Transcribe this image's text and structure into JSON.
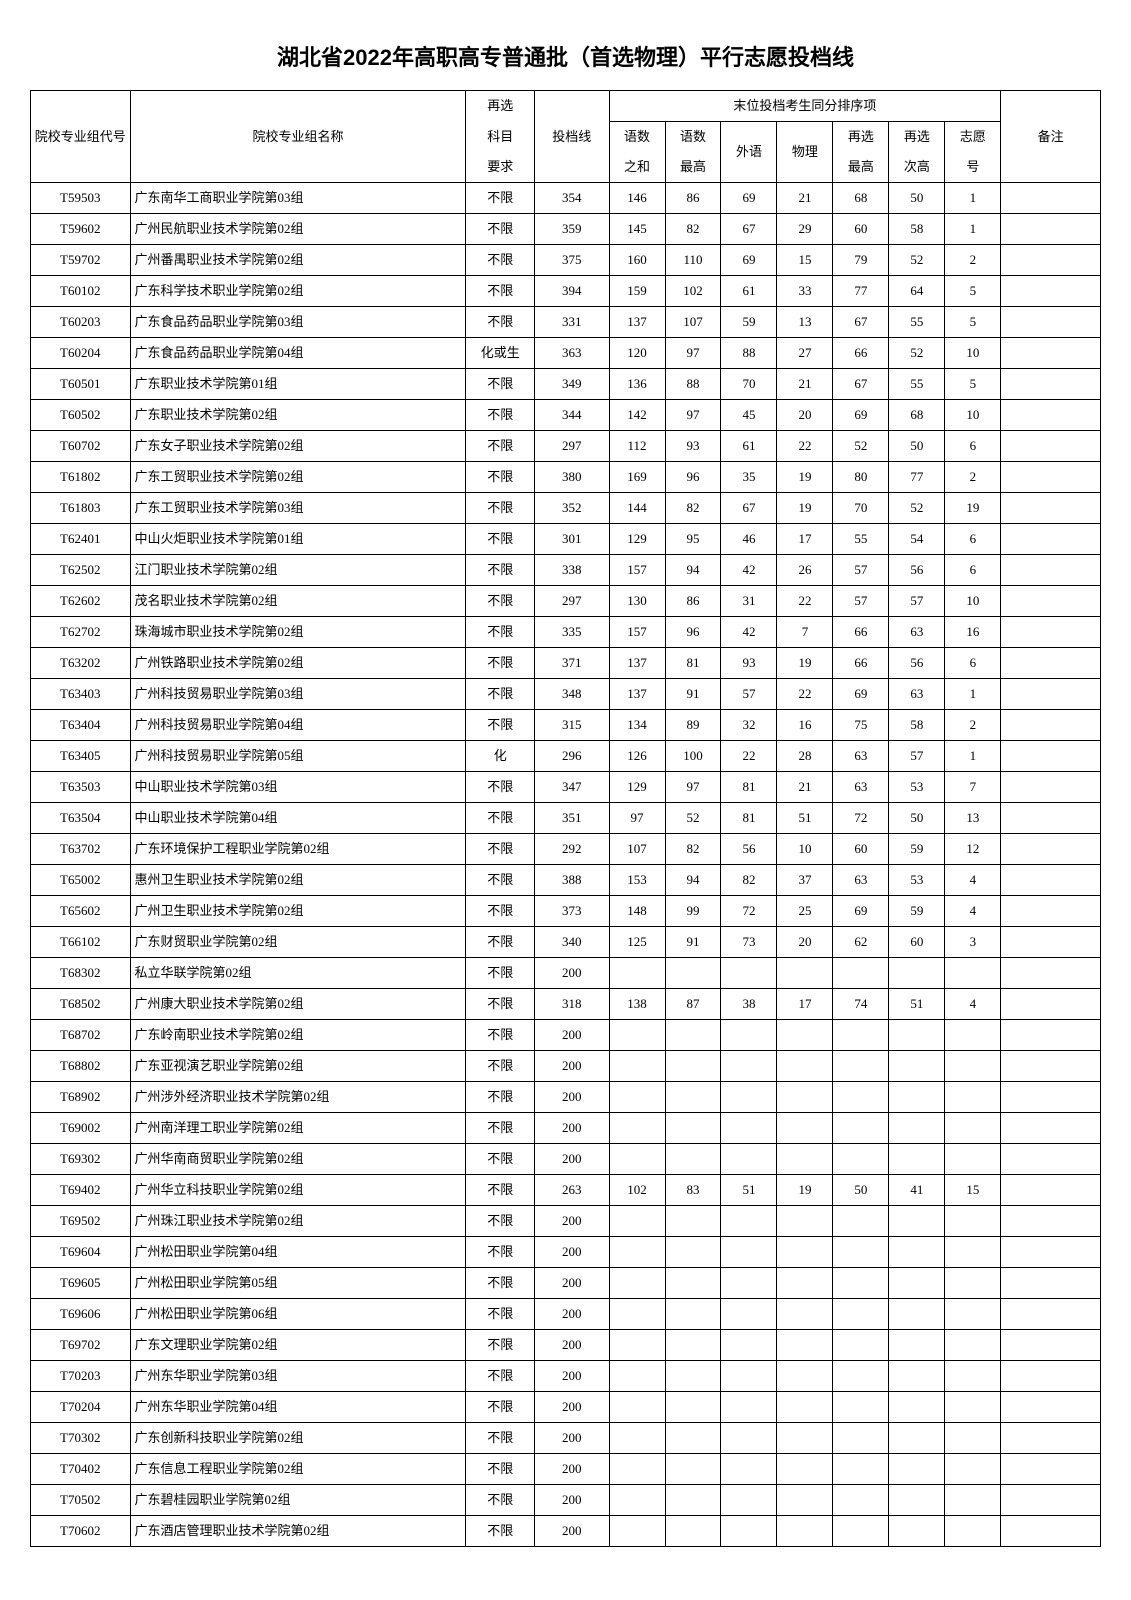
{
  "title": "湖北省2022年高职高专普通批（首选物理）平行志愿投档线",
  "headers": {
    "code": "院校专业组代号",
    "name": "院校专业组名称",
    "req_top": "再选",
    "req_mid": "科目",
    "req_bot": "要求",
    "score_line": "投档线",
    "tiebreak_group": "末位投档考生同分排序项",
    "c1a": "语数",
    "c1b": "之和",
    "c2a": "语数",
    "c2b": "最高",
    "c3": "外语",
    "c4": "物理",
    "c5a": "再选",
    "c5b": "最高",
    "c6a": "再选",
    "c6b": "次高",
    "c7a": "志愿",
    "c7b": "号",
    "note": "备注"
  },
  "rows": [
    {
      "code": "T59503",
      "name": "广东南华工商职业学院第03组",
      "req": "不限",
      "line": "354",
      "s1": "146",
      "s2": "86",
      "s3": "69",
      "s4": "21",
      "s5": "68",
      "s6": "50",
      "s7": "1",
      "note": ""
    },
    {
      "code": "T59602",
      "name": "广州民航职业技术学院第02组",
      "req": "不限",
      "line": "359",
      "s1": "145",
      "s2": "82",
      "s3": "67",
      "s4": "29",
      "s5": "60",
      "s6": "58",
      "s7": "1",
      "note": ""
    },
    {
      "code": "T59702",
      "name": "广州番禺职业技术学院第02组",
      "req": "不限",
      "line": "375",
      "s1": "160",
      "s2": "110",
      "s3": "69",
      "s4": "15",
      "s5": "79",
      "s6": "52",
      "s7": "2",
      "note": ""
    },
    {
      "code": "T60102",
      "name": "广东科学技术职业学院第02组",
      "req": "不限",
      "line": "394",
      "s1": "159",
      "s2": "102",
      "s3": "61",
      "s4": "33",
      "s5": "77",
      "s6": "64",
      "s7": "5",
      "note": ""
    },
    {
      "code": "T60203",
      "name": "广东食品药品职业学院第03组",
      "req": "不限",
      "line": "331",
      "s1": "137",
      "s2": "107",
      "s3": "59",
      "s4": "13",
      "s5": "67",
      "s6": "55",
      "s7": "5",
      "note": ""
    },
    {
      "code": "T60204",
      "name": "广东食品药品职业学院第04组",
      "req": "化或生",
      "line": "363",
      "s1": "120",
      "s2": "97",
      "s3": "88",
      "s4": "27",
      "s5": "66",
      "s6": "52",
      "s7": "10",
      "note": ""
    },
    {
      "code": "T60501",
      "name": "广东职业技术学院第01组",
      "req": "不限",
      "line": "349",
      "s1": "136",
      "s2": "88",
      "s3": "70",
      "s4": "21",
      "s5": "67",
      "s6": "55",
      "s7": "5",
      "note": ""
    },
    {
      "code": "T60502",
      "name": "广东职业技术学院第02组",
      "req": "不限",
      "line": "344",
      "s1": "142",
      "s2": "97",
      "s3": "45",
      "s4": "20",
      "s5": "69",
      "s6": "68",
      "s7": "10",
      "note": ""
    },
    {
      "code": "T60702",
      "name": "广东女子职业技术学院第02组",
      "req": "不限",
      "line": "297",
      "s1": "112",
      "s2": "93",
      "s3": "61",
      "s4": "22",
      "s5": "52",
      "s6": "50",
      "s7": "6",
      "note": ""
    },
    {
      "code": "T61802",
      "name": "广东工贸职业技术学院第02组",
      "req": "不限",
      "line": "380",
      "s1": "169",
      "s2": "96",
      "s3": "35",
      "s4": "19",
      "s5": "80",
      "s6": "77",
      "s7": "2",
      "note": ""
    },
    {
      "code": "T61803",
      "name": "广东工贸职业技术学院第03组",
      "req": "不限",
      "line": "352",
      "s1": "144",
      "s2": "82",
      "s3": "67",
      "s4": "19",
      "s5": "70",
      "s6": "52",
      "s7": "19",
      "note": ""
    },
    {
      "code": "T62401",
      "name": "中山火炬职业技术学院第01组",
      "req": "不限",
      "line": "301",
      "s1": "129",
      "s2": "95",
      "s3": "46",
      "s4": "17",
      "s5": "55",
      "s6": "54",
      "s7": "6",
      "note": ""
    },
    {
      "code": "T62502",
      "name": "江门职业技术学院第02组",
      "req": "不限",
      "line": "338",
      "s1": "157",
      "s2": "94",
      "s3": "42",
      "s4": "26",
      "s5": "57",
      "s6": "56",
      "s7": "6",
      "note": ""
    },
    {
      "code": "T62602",
      "name": "茂名职业技术学院第02组",
      "req": "不限",
      "line": "297",
      "s1": "130",
      "s2": "86",
      "s3": "31",
      "s4": "22",
      "s5": "57",
      "s6": "57",
      "s7": "10",
      "note": ""
    },
    {
      "code": "T62702",
      "name": "珠海城市职业技术学院第02组",
      "req": "不限",
      "line": "335",
      "s1": "157",
      "s2": "96",
      "s3": "42",
      "s4": "7",
      "s5": "66",
      "s6": "63",
      "s7": "16",
      "note": ""
    },
    {
      "code": "T63202",
      "name": "广州铁路职业技术学院第02组",
      "req": "不限",
      "line": "371",
      "s1": "137",
      "s2": "81",
      "s3": "93",
      "s4": "19",
      "s5": "66",
      "s6": "56",
      "s7": "6",
      "note": ""
    },
    {
      "code": "T63403",
      "name": "广州科技贸易职业学院第03组",
      "req": "不限",
      "line": "348",
      "s1": "137",
      "s2": "91",
      "s3": "57",
      "s4": "22",
      "s5": "69",
      "s6": "63",
      "s7": "1",
      "note": ""
    },
    {
      "code": "T63404",
      "name": "广州科技贸易职业学院第04组",
      "req": "不限",
      "line": "315",
      "s1": "134",
      "s2": "89",
      "s3": "32",
      "s4": "16",
      "s5": "75",
      "s6": "58",
      "s7": "2",
      "note": ""
    },
    {
      "code": "T63405",
      "name": "广州科技贸易职业学院第05组",
      "req": "化",
      "line": "296",
      "s1": "126",
      "s2": "100",
      "s3": "22",
      "s4": "28",
      "s5": "63",
      "s6": "57",
      "s7": "1",
      "note": ""
    },
    {
      "code": "T63503",
      "name": "中山职业技术学院第03组",
      "req": "不限",
      "line": "347",
      "s1": "129",
      "s2": "97",
      "s3": "81",
      "s4": "21",
      "s5": "63",
      "s6": "53",
      "s7": "7",
      "note": ""
    },
    {
      "code": "T63504",
      "name": "中山职业技术学院第04组",
      "req": "不限",
      "line": "351",
      "s1": "97",
      "s2": "52",
      "s3": "81",
      "s4": "51",
      "s5": "72",
      "s6": "50",
      "s7": "13",
      "note": ""
    },
    {
      "code": "T63702",
      "name": "广东环境保护工程职业学院第02组",
      "req": "不限",
      "line": "292",
      "s1": "107",
      "s2": "82",
      "s3": "56",
      "s4": "10",
      "s5": "60",
      "s6": "59",
      "s7": "12",
      "note": ""
    },
    {
      "code": "T65002",
      "name": "惠州卫生职业技术学院第02组",
      "req": "不限",
      "line": "388",
      "s1": "153",
      "s2": "94",
      "s3": "82",
      "s4": "37",
      "s5": "63",
      "s6": "53",
      "s7": "4",
      "note": ""
    },
    {
      "code": "T65602",
      "name": "广州卫生职业技术学院第02组",
      "req": "不限",
      "line": "373",
      "s1": "148",
      "s2": "99",
      "s3": "72",
      "s4": "25",
      "s5": "69",
      "s6": "59",
      "s7": "4",
      "note": ""
    },
    {
      "code": "T66102",
      "name": "广东财贸职业学院第02组",
      "req": "不限",
      "line": "340",
      "s1": "125",
      "s2": "91",
      "s3": "73",
      "s4": "20",
      "s5": "62",
      "s6": "60",
      "s7": "3",
      "note": ""
    },
    {
      "code": "T68302",
      "name": "私立华联学院第02组",
      "req": "不限",
      "line": "200",
      "s1": "",
      "s2": "",
      "s3": "",
      "s4": "",
      "s5": "",
      "s6": "",
      "s7": "",
      "note": ""
    },
    {
      "code": "T68502",
      "name": "广州康大职业技术学院第02组",
      "req": "不限",
      "line": "318",
      "s1": "138",
      "s2": "87",
      "s3": "38",
      "s4": "17",
      "s5": "74",
      "s6": "51",
      "s7": "4",
      "note": ""
    },
    {
      "code": "T68702",
      "name": "广东岭南职业技术学院第02组",
      "req": "不限",
      "line": "200",
      "s1": "",
      "s2": "",
      "s3": "",
      "s4": "",
      "s5": "",
      "s6": "",
      "s7": "",
      "note": ""
    },
    {
      "code": "T68802",
      "name": "广东亚视演艺职业学院第02组",
      "req": "不限",
      "line": "200",
      "s1": "",
      "s2": "",
      "s3": "",
      "s4": "",
      "s5": "",
      "s6": "",
      "s7": "",
      "note": ""
    },
    {
      "code": "T68902",
      "name": "广州涉外经济职业技术学院第02组",
      "req": "不限",
      "line": "200",
      "s1": "",
      "s2": "",
      "s3": "",
      "s4": "",
      "s5": "",
      "s6": "",
      "s7": "",
      "note": ""
    },
    {
      "code": "T69002",
      "name": "广州南洋理工职业学院第02组",
      "req": "不限",
      "line": "200",
      "s1": "",
      "s2": "",
      "s3": "",
      "s4": "",
      "s5": "",
      "s6": "",
      "s7": "",
      "note": ""
    },
    {
      "code": "T69302",
      "name": "广州华南商贸职业学院第02组",
      "req": "不限",
      "line": "200",
      "s1": "",
      "s2": "",
      "s3": "",
      "s4": "",
      "s5": "",
      "s6": "",
      "s7": "",
      "note": ""
    },
    {
      "code": "T69402",
      "name": "广州华立科技职业学院第02组",
      "req": "不限",
      "line": "263",
      "s1": "102",
      "s2": "83",
      "s3": "51",
      "s4": "19",
      "s5": "50",
      "s6": "41",
      "s7": "15",
      "note": ""
    },
    {
      "code": "T69502",
      "name": "广州珠江职业技术学院第02组",
      "req": "不限",
      "line": "200",
      "s1": "",
      "s2": "",
      "s3": "",
      "s4": "",
      "s5": "",
      "s6": "",
      "s7": "",
      "note": ""
    },
    {
      "code": "T69604",
      "name": "广州松田职业学院第04组",
      "req": "不限",
      "line": "200",
      "s1": "",
      "s2": "",
      "s3": "",
      "s4": "",
      "s5": "",
      "s6": "",
      "s7": "",
      "note": ""
    },
    {
      "code": "T69605",
      "name": "广州松田职业学院第05组",
      "req": "不限",
      "line": "200",
      "s1": "",
      "s2": "",
      "s3": "",
      "s4": "",
      "s5": "",
      "s6": "",
      "s7": "",
      "note": ""
    },
    {
      "code": "T69606",
      "name": "广州松田职业学院第06组",
      "req": "不限",
      "line": "200",
      "s1": "",
      "s2": "",
      "s3": "",
      "s4": "",
      "s5": "",
      "s6": "",
      "s7": "",
      "note": ""
    },
    {
      "code": "T69702",
      "name": "广东文理职业学院第02组",
      "req": "不限",
      "line": "200",
      "s1": "",
      "s2": "",
      "s3": "",
      "s4": "",
      "s5": "",
      "s6": "",
      "s7": "",
      "note": ""
    },
    {
      "code": "T70203",
      "name": "广州东华职业学院第03组",
      "req": "不限",
      "line": "200",
      "s1": "",
      "s2": "",
      "s3": "",
      "s4": "",
      "s5": "",
      "s6": "",
      "s7": "",
      "note": ""
    },
    {
      "code": "T70204",
      "name": "广州东华职业学院第04组",
      "req": "不限",
      "line": "200",
      "s1": "",
      "s2": "",
      "s3": "",
      "s4": "",
      "s5": "",
      "s6": "",
      "s7": "",
      "note": ""
    },
    {
      "code": "T70302",
      "name": "广东创新科技职业学院第02组",
      "req": "不限",
      "line": "200",
      "s1": "",
      "s2": "",
      "s3": "",
      "s4": "",
      "s5": "",
      "s6": "",
      "s7": "",
      "note": ""
    },
    {
      "code": "T70402",
      "name": "广东信息工程职业学院第02组",
      "req": "不限",
      "line": "200",
      "s1": "",
      "s2": "",
      "s3": "",
      "s4": "",
      "s5": "",
      "s6": "",
      "s7": "",
      "note": ""
    },
    {
      "code": "T70502",
      "name": "广东碧桂园职业学院第02组",
      "req": "不限",
      "line": "200",
      "s1": "",
      "s2": "",
      "s3": "",
      "s4": "",
      "s5": "",
      "s6": "",
      "s7": "",
      "note": ""
    },
    {
      "code": "T70602",
      "name": "广东酒店管理职业技术学院第02组",
      "req": "不限",
      "line": "200",
      "s1": "",
      "s2": "",
      "s3": "",
      "s4": "",
      "s5": "",
      "s6": "",
      "s7": "",
      "note": ""
    }
  ]
}
